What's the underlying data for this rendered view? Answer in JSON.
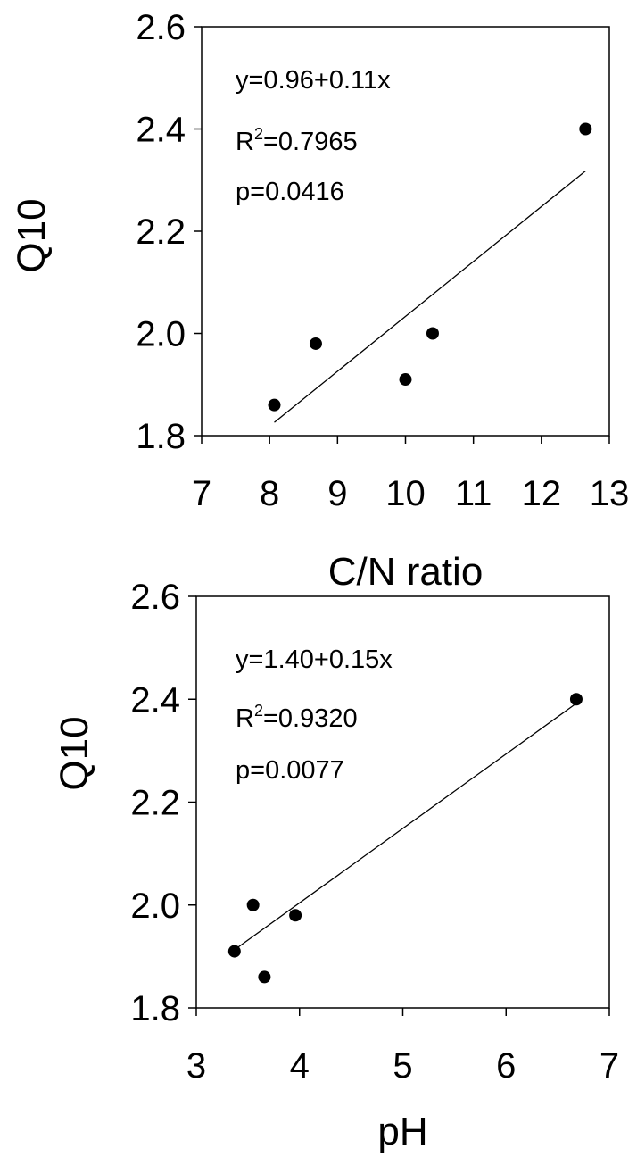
{
  "chart_data": [
    {
      "type": "scatter",
      "title": "",
      "xlabel": "C/N ratio",
      "ylabel": "Q10",
      "xlim": [
        7,
        13
      ],
      "ylim": [
        1.8,
        2.6
      ],
      "x_ticks": [
        "7",
        "8",
        "9",
        "10",
        "11",
        "12",
        "13"
      ],
      "y_ticks": [
        "1.8",
        "2.0",
        "2.2",
        "2.4",
        "2.6"
      ],
      "grid": false,
      "series": [
        {
          "points": [
            {
              "x": 8.07,
              "y": 1.86
            },
            {
              "x": 8.68,
              "y": 1.98
            },
            {
              "x": 10.0,
              "y": 1.91
            },
            {
              "x": 10.4,
              "y": 2.0
            },
            {
              "x": 12.65,
              "y": 2.4
            }
          ]
        }
      ],
      "fit_line": {
        "x": [
          8.07,
          12.65
        ],
        "y": [
          1.826,
          2.318
        ]
      },
      "annotations": {
        "equation": "y=0.96+0.11x",
        "r2_prefix": "R",
        "r2_sup": "2",
        "r2_value": "=0.7965",
        "p_value": "p=0.0416"
      }
    },
    {
      "type": "scatter",
      "title": "",
      "xlabel": "pH",
      "ylabel": "Q10",
      "xlim": [
        3,
        7
      ],
      "ylim": [
        1.8,
        2.6
      ],
      "x_ticks": [
        "3",
        "4",
        "5",
        "6",
        "7"
      ],
      "y_ticks": [
        "1.8",
        "2.0",
        "2.2",
        "2.4",
        "2.6"
      ],
      "grid": false,
      "series": [
        {
          "points": [
            {
              "x": 3.37,
              "y": 1.91
            },
            {
              "x": 3.55,
              "y": 2.0
            },
            {
              "x": 3.66,
              "y": 1.86
            },
            {
              "x": 3.96,
              "y": 1.98
            },
            {
              "x": 6.68,
              "y": 2.4
            }
          ]
        }
      ],
      "fit_line": {
        "x": [
          3.37,
          6.68
        ],
        "y": [
          1.913,
          2.392
        ]
      },
      "annotations": {
        "equation": "y=1.40+0.15x",
        "r2_prefix": "R",
        "r2_sup": "2",
        "r2_value": "=0.9320",
        "p_value": "p=0.0077"
      }
    }
  ]
}
